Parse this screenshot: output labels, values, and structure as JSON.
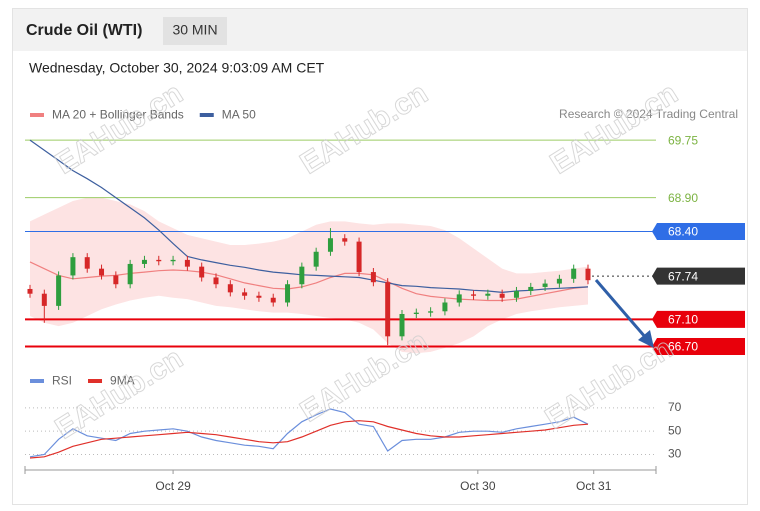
{
  "chart_data": {
    "type": "candlestick",
    "title": "Crude Oil (WTI)",
    "interval": "30 MIN",
    "timestamp": "Wednesday, October 30, 2024 9:03:09 AM CET",
    "credit": "Research © 2024 Trading Central",
    "watermark": "EAHub.cn",
    "up_color": "#2e9e3e",
    "down_color": "#d62728",
    "ylim": [
      66.5,
      69.9
    ],
    "candles": {
      "open": [
        67.55,
        67.48,
        67.3,
        67.75,
        68.02,
        67.85,
        67.75,
        67.62,
        67.92,
        67.98,
        67.96,
        67.98,
        67.88,
        67.72,
        67.62,
        67.5,
        67.45,
        67.42,
        67.35,
        67.62,
        67.88,
        68.1,
        68.3,
        68.25,
        67.8,
        67.65,
        66.85,
        67.18,
        67.2,
        67.22,
        67.35,
        67.47,
        67.45,
        67.48,
        67.42,
        67.52,
        67.58,
        67.63,
        67.7,
        67.85
      ],
      "high": [
        67.61,
        67.54,
        67.81,
        68.08,
        68.08,
        67.91,
        67.81,
        67.98,
        68.04,
        68.04,
        68.04,
        68.04,
        67.94,
        67.78,
        67.68,
        67.56,
        67.51,
        67.48,
        67.68,
        67.94,
        68.16,
        68.45,
        68.36,
        68.31,
        67.86,
        67.71,
        67.24,
        67.26,
        67.28,
        67.41,
        67.53,
        67.53,
        67.54,
        67.54,
        67.58,
        67.64,
        67.69,
        67.76,
        67.91,
        67.91
      ],
      "low": [
        67.42,
        67.05,
        67.24,
        67.69,
        67.79,
        67.69,
        67.56,
        67.56,
        67.86,
        67.9,
        67.9,
        67.82,
        67.66,
        67.56,
        67.44,
        67.39,
        67.36,
        67.29,
        67.29,
        67.56,
        67.82,
        68.04,
        68.19,
        67.74,
        67.59,
        66.72,
        66.79,
        67.12,
        67.14,
        67.16,
        67.29,
        67.39,
        67.39,
        67.36,
        67.36,
        67.46,
        67.52,
        67.57,
        67.64,
        67.62
      ],
      "close": [
        67.48,
        67.3,
        67.75,
        68.02,
        67.85,
        67.75,
        67.62,
        67.92,
        67.98,
        67.96,
        67.98,
        67.88,
        67.72,
        67.62,
        67.5,
        67.45,
        67.42,
        67.35,
        67.62,
        67.88,
        68.1,
        68.3,
        68.25,
        67.8,
        67.65,
        66.85,
        67.18,
        67.2,
        67.22,
        67.35,
        67.47,
        67.45,
        67.48,
        67.42,
        67.52,
        67.58,
        67.63,
        67.7,
        67.85,
        67.68
      ]
    },
    "overlays": [
      {
        "name": "MA 20 + Bollinger Bands",
        "color": "#f08080",
        "values": [
          67.95,
          67.85,
          67.75,
          67.7,
          67.72,
          67.74,
          67.75,
          67.78,
          67.8,
          67.82,
          67.83,
          67.82,
          67.8,
          67.76,
          67.7,
          67.64,
          67.6,
          67.56,
          67.55,
          67.58,
          67.64,
          67.72,
          67.78,
          67.78,
          67.76,
          67.66,
          67.56,
          67.48,
          67.44,
          67.42,
          67.4,
          67.39,
          67.38,
          67.38,
          67.4,
          67.44,
          67.48,
          67.52,
          67.56,
          67.58
        ]
      },
      {
        "name": "MA 50",
        "color": "#3d5f9f",
        "values": [
          69.75,
          69.6,
          69.45,
          69.3,
          69.18,
          69.05,
          68.9,
          68.75,
          68.6,
          68.42,
          68.22,
          68.03,
          67.98,
          67.94,
          67.9,
          67.87,
          67.83,
          67.8,
          67.78,
          67.76,
          67.75,
          67.74,
          67.73,
          67.72,
          67.68,
          67.64,
          67.6,
          67.59,
          67.57,
          67.56,
          67.55,
          67.53,
          67.52,
          67.5,
          67.52,
          67.53,
          67.55,
          67.56,
          67.57,
          67.58
        ]
      }
    ],
    "band": {
      "color": "#fde3e3",
      "upper": [
        68.55,
        68.65,
        68.75,
        68.85,
        68.9,
        68.9,
        68.85,
        68.8,
        68.7,
        68.55,
        68.45,
        68.35,
        68.3,
        68.25,
        68.2,
        68.2,
        68.22,
        68.25,
        68.3,
        68.4,
        68.5,
        68.55,
        68.55,
        68.52,
        68.5,
        68.52,
        68.52,
        68.5,
        68.48,
        68.42,
        68.3,
        68.15,
        68.0,
        67.85,
        67.78,
        67.78,
        67.8,
        67.82,
        67.85,
        67.88
      ],
      "lower": [
        67.15,
        67.05,
        67.0,
        67.05,
        67.15,
        67.25,
        67.32,
        67.38,
        67.42,
        67.45,
        67.42,
        67.4,
        67.35,
        67.3,
        67.28,
        67.25,
        67.22,
        67.2,
        67.2,
        67.18,
        67.15,
        67.12,
        67.1,
        67.05,
        66.95,
        66.75,
        66.62,
        66.6,
        66.62,
        66.68,
        66.75,
        66.85,
        67.0,
        67.1,
        67.18,
        67.22,
        67.25,
        67.28,
        67.3,
        67.32
      ]
    },
    "levels": [
      {
        "value": 69.75,
        "label": "69.75",
        "color": "#9ccc65",
        "line": "solid",
        "tag": false
      },
      {
        "value": 68.9,
        "label": "68.90",
        "color": "#9ccc65",
        "line": "solid",
        "tag": false
      },
      {
        "value": 68.4,
        "label": "68.40",
        "color": "#2f6ee6",
        "line": "solid",
        "tag": true
      },
      {
        "value": 67.74,
        "label": "67.74",
        "color": "#333333",
        "line": "dotted",
        "tag": true
      },
      {
        "value": 67.1,
        "label": "67.10",
        "color": "#e8000b",
        "line": "thick",
        "tag": true
      },
      {
        "value": 66.7,
        "label": "66.70",
        "color": "#e8000b",
        "line": "thick",
        "tag": true
      }
    ],
    "xticks": [
      {
        "value": 10,
        "label": "Oct 29"
      },
      {
        "value": 31.3,
        "label": "Oct 30"
      },
      {
        "value": 39.4,
        "label": "Oct 31"
      }
    ],
    "rsi": {
      "ylim": [
        21,
        81
      ],
      "yticks": [
        70,
        50,
        30
      ],
      "series": [
        {
          "name": "RSI",
          "color": "#6b8fdc",
          "values": [
            28,
            30,
            43,
            52,
            46,
            44,
            42,
            48,
            50,
            51,
            52,
            50,
            45,
            42,
            40,
            38,
            37,
            35,
            48,
            58,
            64,
            69,
            66,
            56,
            54,
            33,
            42,
            43,
            43,
            45,
            49,
            50,
            50,
            49,
            52,
            54,
            56,
            58,
            62,
            56
          ]
        },
        {
          "name": "9MA",
          "color": "#e0302a",
          "values": [
            27,
            28,
            32,
            37,
            40,
            43,
            44,
            45,
            46,
            47,
            48,
            49,
            48,
            47,
            45,
            43,
            41,
            40,
            41,
            45,
            50,
            55,
            58,
            59,
            58,
            54,
            51,
            48,
            46,
            45,
            45,
            46,
            47,
            48,
            49,
            50,
            51,
            53,
            55,
            56
          ]
        }
      ]
    }
  }
}
